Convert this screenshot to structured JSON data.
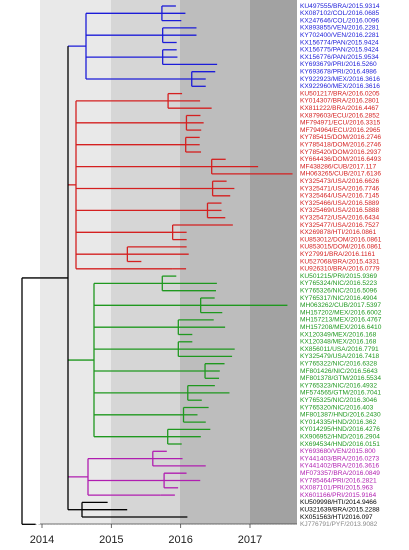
{
  "clades": [
    {
      "color": "#1c1cd8",
      "tips": [
        "KU497555/BRA/2015.9314",
        "KX087102/COL/2016.0685",
        "KX247646/COL/2016.0096",
        "KX893855/VEN/2016.2281",
        "KY702400/VEN/2016.2281",
        "KX156774/PAN/2015.9424",
        "KX156775/PAN/2015.9424",
        "KX156776/PAN/2015.9534",
        "KY693679/PRI/2016.5260",
        "KY693678/PRI/2016.4986",
        "KY922923/MEX/2016.3616",
        "KX922960/MEX/2016.3616"
      ]
    },
    {
      "color": "#d42020",
      "tips": [
        "KU501217/BRA/2016.0205",
        "KY014307/BRA/2016.2801",
        "KX811222/BRA/2016.4467",
        "KX879603/ECU/2016.2852",
        "MF794971/ECU/2016.3315",
        "MF794964/ECU/2016.2965",
        "KY785415/DOM/2016.2746",
        "KY785418/DOM/2016.2746",
        "KY785420/DOM/2016.2937",
        "KY664436/DOM/2016.6493",
        "MF438286/CUB/2017.117",
        "MH063265/CUB/2017.6136",
        "KY325473/USA/2016.6626",
        "KY325471/USA/2016.7746",
        "KY325464/USA/2016.7145",
        "KY325466/USA/2016.5889",
        "KY325469/USA/2016.5888",
        "KY325472/USA/2016.6434",
        "KY325477/USA/2016.7527",
        "KX269878/HTI/2016.0861",
        "KU853012/DOM/2016.0861",
        "KU853015/DOM/2016.0861",
        "KY27991/BRA/2016.1161",
        "KU527068/BRA/2015.4331",
        "KU926310/BRA/2016.0779"
      ]
    },
    {
      "color": "#1f981f",
      "tips": [
        "KU501215/PRI/2015.9369",
        "KY765324/NIC/2016.5223",
        "KY765326/NIC/2016.5096",
        "KY765317/NIC/2016.4904",
        "MH063262/CUB/2017.5397",
        "MH157202/MEX/2016.6002",
        "MH157213/MEX/2016.4767",
        "MH157208/MEX/2016.6410",
        "KX120349/MEX/2016.168",
        "KX120348/MEX/2016.168",
        "KX856011/USA/2016.7791",
        "KY325479/USA/2016.7418",
        "KY765322/NIC/2016.6328",
        "MF801426/NIC/2016.5643",
        "MF801378/GTM/2016.5534",
        "KY765323/NIC/2016.4932",
        "MF574565/GTM/2016.7041",
        "KY765325/NIC/2016.3046",
        "KY765320/NIC/2016.403",
        "MF801387/HND/2016.2430",
        "KY014335/HND/2016.362",
        "KY014295/HND/2016.4276",
        "KX906952/HND/2016.2904",
        "KX694534/HND/2016.0151"
      ]
    },
    {
      "color": "#b01eb0",
      "tips": [
        "KY693680/VEN/2015.800",
        "KY441403/BRA/2016.0273",
        "KY441402/BRA/2016.3616",
        "MF073357/BRA/2016.0849",
        "KY785464/PRI/2016.2821",
        "KX087101/PRI/2015.963",
        "KX601166/PRI/2015.9164"
      ]
    },
    {
      "color": "#000000",
      "tips": [
        "KU509998/HTI/2014.9466",
        "KU321639/BRA/2015.2288",
        "KX051563/HTI/2016.097"
      ]
    },
    {
      "color": "#888888",
      "tips": [
        "KJ776791/PYF/2013.9082"
      ]
    }
  ],
  "axis": {
    "ticks": [
      "2014",
      "2015",
      "2016",
      "2017"
    ]
  }
}
